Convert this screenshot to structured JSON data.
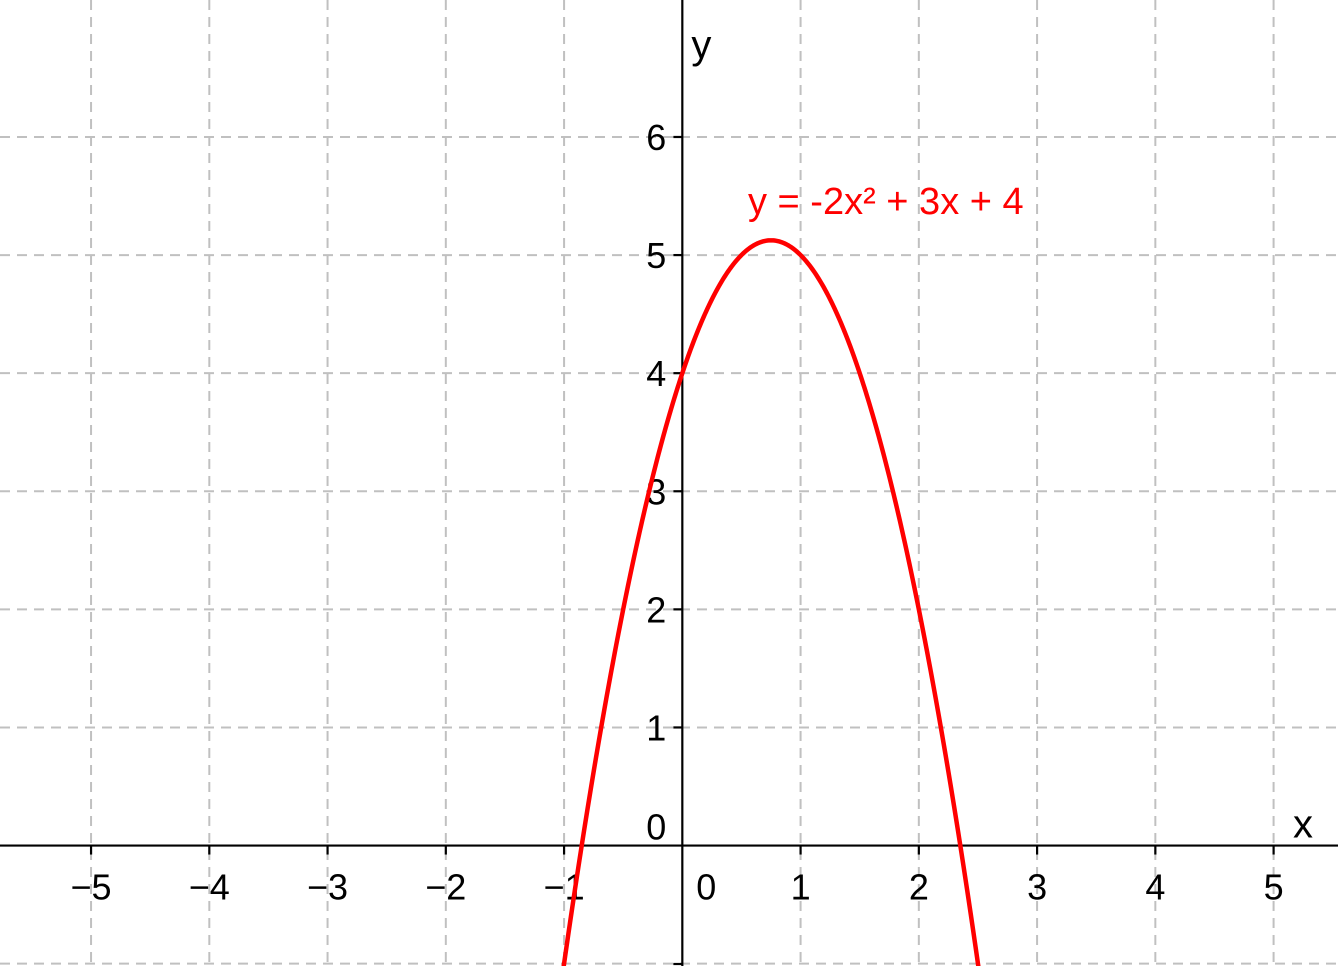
{
  "chart_data": {
    "type": "line",
    "function": {
      "label": "y = -2x² + 3x + 4",
      "a": -2,
      "b": 3,
      "c": 4,
      "color": "#ff0000"
    },
    "xlabel": "x",
    "ylabel": "y",
    "xlim": [
      -5.77,
      5.57
    ],
    "ylim": [
      -1.02,
      7.16
    ],
    "x_ticks": [
      -5,
      -4,
      -3,
      -2,
      -1,
      0,
      1,
      2,
      3,
      4,
      5
    ],
    "x_tick_labels": [
      "−5",
      "−4",
      "−3",
      "−2",
      "−1",
      "0",
      "1",
      "2",
      "3",
      "4",
      "5"
    ],
    "y_ticks": [
      0,
      1,
      2,
      3,
      4,
      5,
      6
    ],
    "y_tick_labels": [
      "0",
      "1",
      "2",
      "3",
      "4",
      "5",
      "6"
    ],
    "grid": true,
    "grid_style": "dashed",
    "grid_color": "#c0c0c0",
    "axis_color": "#000000"
  }
}
